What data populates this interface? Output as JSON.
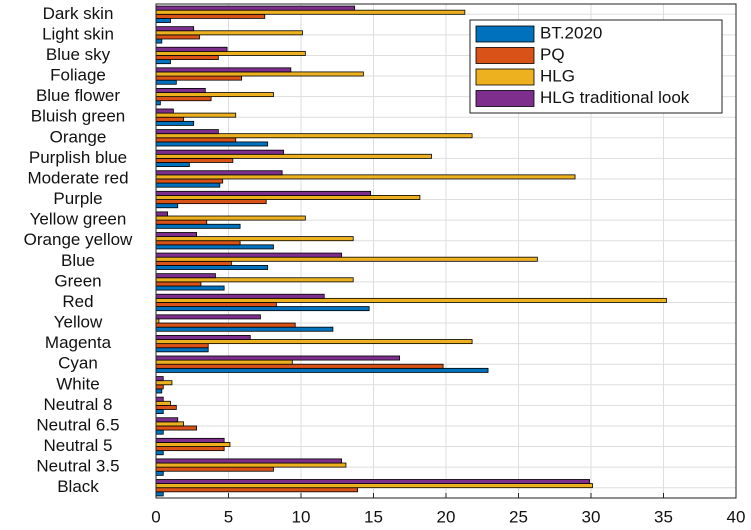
{
  "chart_data": {
    "type": "bar",
    "orientation": "horizontal",
    "categories": [
      "Dark skin",
      "Light skin",
      "Blue sky",
      "Foliage",
      "Blue flower",
      "Bluish green",
      "Orange",
      "Purplish blue",
      "Moderate red",
      "Purple",
      "Yellow green",
      "Orange yellow",
      "Blue",
      "Green",
      "Red",
      "Yellow",
      "Magenta",
      "Cyan",
      "White",
      "Neutral 8",
      "Neutral 6.5",
      "Neutral 5",
      "Neutral 3.5",
      "Black"
    ],
    "series": [
      {
        "name": "BT.2020",
        "color": "#0072bd",
        "values": [
          1.0,
          0.4,
          1.0,
          1.4,
          0.3,
          2.6,
          7.7,
          2.3,
          4.4,
          1.5,
          5.8,
          8.1,
          7.7,
          4.7,
          14.7,
          12.2,
          3.6,
          22.9,
          0.4,
          0.5,
          0.5,
          0.5,
          0.5,
          0.5
        ]
      },
      {
        "name": "PQ",
        "color": "#d95319",
        "values": [
          7.5,
          3.0,
          4.3,
          5.9,
          3.8,
          1.9,
          5.5,
          5.3,
          4.6,
          7.6,
          3.5,
          5.8,
          5.2,
          3.1,
          8.3,
          9.6,
          3.6,
          19.8,
          0.5,
          1.4,
          2.8,
          4.7,
          8.1,
          13.9
        ]
      },
      {
        "name": "HLG",
        "color": "#edb120",
        "values": [
          21.3,
          10.1,
          10.3,
          14.3,
          8.1,
          5.5,
          21.8,
          19.0,
          28.9,
          18.2,
          10.3,
          13.6,
          26.3,
          13.6,
          35.2,
          0.2,
          21.8,
          9.4,
          1.1,
          1.0,
          1.9,
          5.1,
          13.1,
          30.1
        ]
      },
      {
        "name": "HLG traditional look",
        "color": "#7e2f8e",
        "values": [
          13.7,
          2.6,
          4.9,
          9.3,
          3.4,
          1.2,
          4.3,
          8.8,
          8.7,
          14.8,
          0.8,
          2.8,
          12.8,
          4.1,
          11.6,
          7.2,
          6.5,
          16.8,
          0.5,
          0.5,
          1.5,
          4.7,
          12.8,
          29.9
        ]
      }
    ],
    "xlim": [
      0,
      40
    ],
    "xticks": [
      0,
      5,
      10,
      15,
      20,
      25,
      30,
      35,
      40
    ],
    "grid": true,
    "legend": "upper right"
  }
}
